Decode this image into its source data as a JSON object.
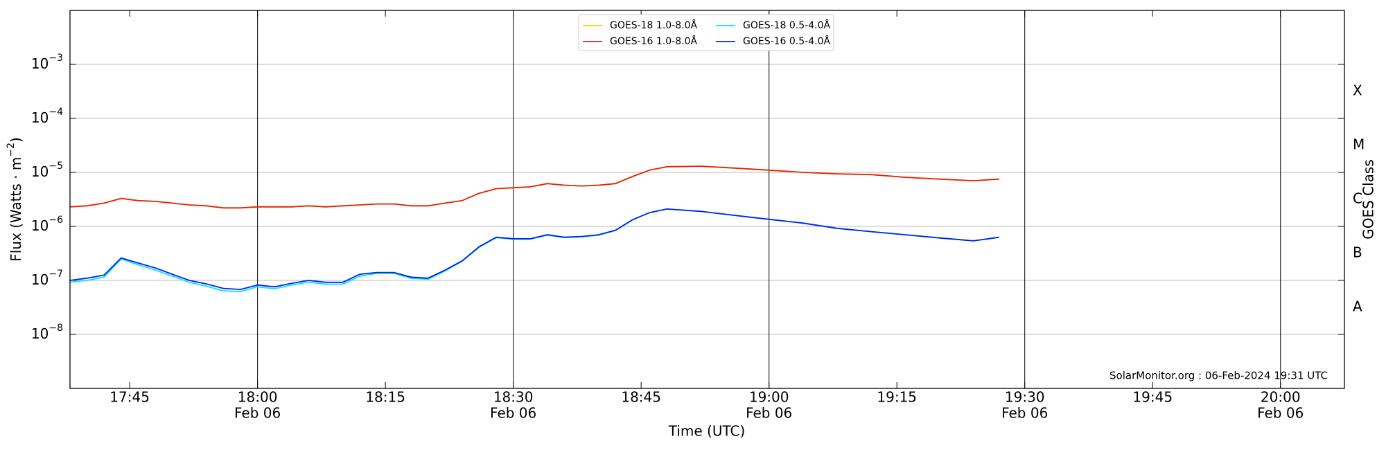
{
  "chart_data": {
    "type": "line",
    "x": [
      "17:38",
      "17:40",
      "17:42",
      "17:44",
      "17:46",
      "17:48",
      "17:50",
      "17:52",
      "17:54",
      "17:56",
      "17:58",
      "18:00",
      "18:02",
      "18:04",
      "18:06",
      "18:08",
      "18:10",
      "18:12",
      "18:14",
      "18:16",
      "18:18",
      "18:20",
      "18:22",
      "18:24",
      "18:26",
      "18:28",
      "18:30",
      "18:32",
      "18:34",
      "18:36",
      "18:38",
      "18:40",
      "18:42",
      "18:44",
      "18:46",
      "18:48",
      "18:52",
      "18:56",
      "19:00",
      "19:04",
      "19:08",
      "19:12",
      "19:16",
      "19:20",
      "19:24",
      "19:27"
    ],
    "series": [
      {
        "name": "GOES-18 1.0-8.0Å",
        "color": "#ffcc00",
        "values": [
          2.3e-06,
          2.4e-06,
          2.7e-06,
          3.3e-06,
          3e-06,
          2.9e-06,
          2.7e-06,
          2.5e-06,
          2.4e-06,
          2.2e-06,
          2.2e-06,
          2.3e-06,
          2.3e-06,
          2.3e-06,
          2.4e-06,
          2.3e-06,
          2.4e-06,
          2.5e-06,
          2.6e-06,
          2.6e-06,
          2.4e-06,
          2.4e-06,
          2.7e-06,
          3e-06,
          4.1e-06,
          5e-06,
          5.2e-06,
          5.4e-06,
          6.2e-06,
          5.8e-06,
          5.6e-06,
          5.8e-06,
          6.2e-06,
          8.4e-06,
          1.1e-05,
          1.27e-05,
          1.3e-05,
          1.2e-05,
          1.1e-05,
          1e-05,
          9.4e-06,
          9.1e-06,
          8.1e-06,
          7.5e-06,
          7e-06,
          7.5e-06
        ]
      },
      {
        "name": "GOES-16 1.0-8.0Å",
        "color": "#e8210c",
        "values": [
          2.3e-06,
          2.4e-06,
          2.7e-06,
          3.3e-06,
          3e-06,
          2.9e-06,
          2.7e-06,
          2.5e-06,
          2.4e-06,
          2.2e-06,
          2.2e-06,
          2.3e-06,
          2.3e-06,
          2.3e-06,
          2.4e-06,
          2.3e-06,
          2.4e-06,
          2.5e-06,
          2.6e-06,
          2.6e-06,
          2.4e-06,
          2.4e-06,
          2.7e-06,
          3e-06,
          4.1e-06,
          5e-06,
          5.2e-06,
          5.4e-06,
          6.2e-06,
          5.8e-06,
          5.6e-06,
          5.8e-06,
          6.2e-06,
          8.4e-06,
          1.1e-05,
          1.27e-05,
          1.3e-05,
          1.2e-05,
          1.1e-05,
          1e-05,
          9.4e-06,
          9.1e-06,
          8.1e-06,
          7.5e-06,
          7e-06,
          7.5e-06
        ]
      },
      {
        "name": "GOES-18 0.5-4.0Å",
        "color": "#00e5ff",
        "values": [
          9.3e-08,
          1e-07,
          1.15e-07,
          2.5e-07,
          1.95e-07,
          1.55e-07,
          1.2e-07,
          9.2e-08,
          7.8e-08,
          6.4e-08,
          6.2e-08,
          7.6e-08,
          7e-08,
          8.2e-08,
          9.3e-08,
          8.5e-08,
          8.5e-08,
          1.2e-07,
          1.35e-07,
          1.35e-07,
          1.1e-07,
          1.05e-07,
          1.5e-07,
          2.25e-07,
          4.1e-07,
          6.2e-07,
          5.8e-07,
          5.8e-07,
          6.9e-07,
          6.2e-07,
          6.4e-07,
          6.9e-07,
          8.4e-07,
          1.32e-06,
          1.8e-06,
          2.1e-06,
          1.9e-06,
          1.6e-06,
          1.35e-06,
          1.15e-06,
          9.2e-07,
          8e-07,
          7e-07,
          6.1e-07,
          5.4e-07,
          6.3e-07
        ]
      },
      {
        "name": "GOES-16 0.5-4.0Å",
        "color": "#0022ee",
        "values": [
          1e-07,
          1.1e-07,
          1.25e-07,
          2.6e-07,
          2.1e-07,
          1.7e-07,
          1.3e-07,
          1e-07,
          8.6e-08,
          7.1e-08,
          6.8e-08,
          8.2e-08,
          7.6e-08,
          8.8e-08,
          1e-07,
          9.2e-08,
          9.2e-08,
          1.3e-07,
          1.4e-07,
          1.4e-07,
          1.15e-07,
          1.1e-07,
          1.55e-07,
          2.3e-07,
          4.2e-07,
          6.3e-07,
          5.9e-07,
          5.9e-07,
          7e-07,
          6.3e-07,
          6.5e-07,
          7e-07,
          8.5e-07,
          1.33e-06,
          1.8e-06,
          2.1e-06,
          1.9e-06,
          1.6e-06,
          1.35e-06,
          1.15e-06,
          9.2e-07,
          8e-07,
          7e-07,
          6.1e-07,
          5.4e-07,
          6.3e-07
        ]
      }
    ],
    "xlabel": "Time (UTC)",
    "ylabel": [
      "Flux (Watts · m",
      "−2",
      ")"
    ],
    "y2label": "GOES Class",
    "annotation": "SolarMonitor.org : 06-Feb-2024 19:31 UTC",
    "xlim": [
      "17:38",
      "20:07:30"
    ],
    "xticks": [
      "17:45",
      {
        "value": "18:00",
        "label": [
          "18:00",
          "Feb 06"
        ]
      },
      "18:15",
      {
        "value": "18:30",
        "label": [
          "18:30",
          "Feb 06"
        ]
      },
      "18:45",
      {
        "value": "19:00",
        "label": [
          "19:00",
          "Feb 06"
        ]
      },
      "19:15",
      {
        "value": "19:30",
        "label": [
          "19:30",
          "Feb 06"
        ]
      },
      "19:45",
      {
        "value": "20:00",
        "label": [
          "20:00",
          "Feb 06"
        ]
      }
    ],
    "ylim": [
      1e-09,
      0.01
    ],
    "log_scale": true,
    "yticks": [
      {
        "value": 1e-08,
        "label": [
          "10",
          "−8"
        ]
      },
      {
        "value": 1e-07,
        "label": [
          "10",
          "−7"
        ]
      },
      {
        "value": 1e-06,
        "label": [
          "10",
          "−6"
        ]
      },
      {
        "value": 1e-05,
        "label": [
          "10",
          "−5"
        ]
      },
      {
        "value": 0.0001,
        "label": [
          "10",
          "−4"
        ]
      },
      {
        "value": 0.001,
        "label": [
          "10",
          "−3"
        ]
      }
    ],
    "y2lim": [
      1e-09,
      0.01
    ],
    "y2ticks": [
      {
        "value": 3.16e-08,
        "label": "A"
      },
      {
        "value": 3.16e-07,
        "label": "B"
      },
      {
        "value": 3.16e-06,
        "label": "C"
      },
      {
        "value": 3.16e-05,
        "label": "M"
      },
      {
        "value": 0.000316,
        "label": "X"
      }
    ],
    "grid": true,
    "legend": "upper center"
  }
}
